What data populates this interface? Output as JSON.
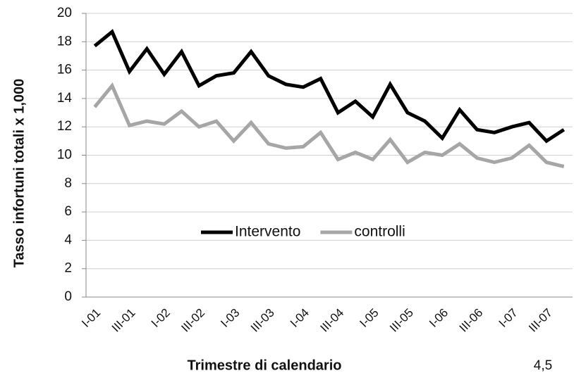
{
  "chart_data": {
    "type": "line",
    "x_label": "Trimestre di calendario",
    "y_label": "Tasso infortuni totali x 1,000",
    "annotation": "4,5",
    "categories": [
      "I-01",
      null,
      "III-01",
      null,
      "I-02",
      null,
      "III-02",
      null,
      "I-03",
      null,
      "III-03",
      null,
      "I-04",
      null,
      "III-04",
      null,
      "I-05",
      null,
      "III-05",
      null,
      "I-06",
      null,
      "III-06",
      null,
      "I-07",
      null,
      "III-07",
      null
    ],
    "series": [
      {
        "name": "Intervento",
        "color": "#000000",
        "values": [
          17.7,
          18.7,
          15.9,
          17.5,
          15.7,
          17.3,
          14.9,
          15.6,
          15.8,
          17.3,
          15.6,
          15.0,
          14.8,
          15.4,
          13.0,
          13.8,
          12.7,
          15.0,
          13.0,
          12.4,
          11.2,
          13.2,
          11.8,
          11.6,
          12.0,
          12.3,
          11.0,
          11.8
        ]
      },
      {
        "name": "controlli",
        "color": "#a6a6a6",
        "values": [
          13.4,
          14.9,
          12.1,
          12.4,
          12.2,
          13.1,
          12.0,
          12.4,
          11.0,
          12.3,
          10.8,
          10.5,
          10.6,
          11.6,
          9.7,
          10.2,
          9.7,
          11.1,
          9.5,
          10.2,
          10.0,
          10.8,
          9.8,
          9.5,
          9.8,
          10.7,
          9.5,
          9.2
        ]
      }
    ],
    "ylim": [
      0,
      20
    ],
    "yticks": [
      0,
      2,
      4,
      6,
      8,
      10,
      12,
      14,
      16,
      18,
      20
    ],
    "grid": true,
    "legend": "center"
  }
}
